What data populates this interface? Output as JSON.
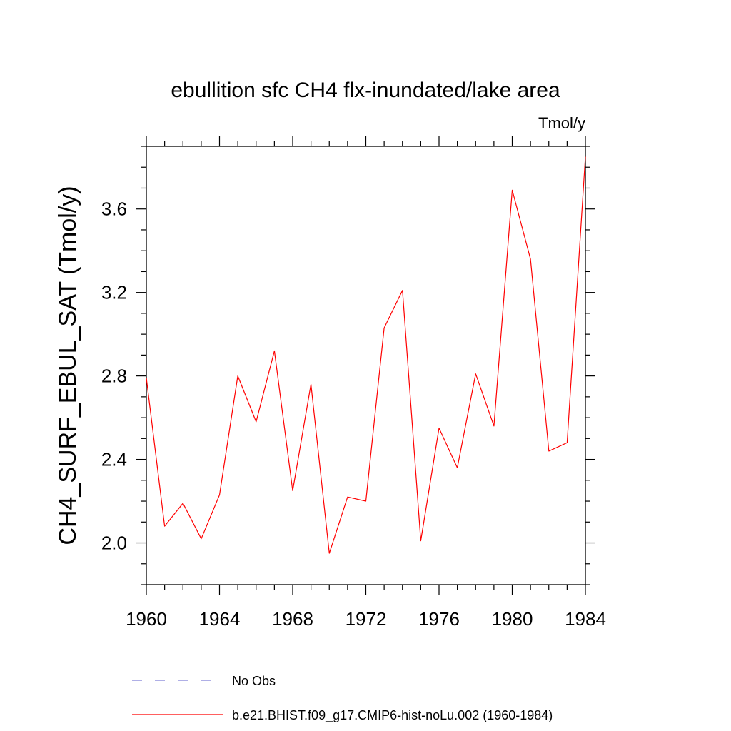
{
  "chart_data": {
    "type": "line",
    "title": "ebullition sfc CH4 flx-inundated/lake area",
    "units": "Tmol/y",
    "ylabel": "CH4_SURF_EBUL_SAT  (Tmol/y)",
    "xlabel": "",
    "xlim": [
      1960,
      1984
    ],
    "ylim": [
      1.8,
      3.9
    ],
    "x_ticks": [
      1960,
      1964,
      1968,
      1972,
      1976,
      1980,
      1984
    ],
    "y_ticks": [
      "2.0",
      "2.4",
      "2.8",
      "3.2",
      "3.6"
    ],
    "grid": false,
    "legend_position": "bottom",
    "series": [
      {
        "name": "b.e21.BHIST.f09_g17.CMIP6-hist-noLu.002 (1960-1984)",
        "color": "#ff0000",
        "style": "solid",
        "x": [
          1960,
          1961,
          1962,
          1963,
          1964,
          1965,
          1966,
          1967,
          1968,
          1969,
          1970,
          1971,
          1972,
          1973,
          1974,
          1975,
          1976,
          1977,
          1978,
          1979,
          1980,
          1981,
          1982,
          1983,
          1984
        ],
        "values": [
          2.79,
          2.08,
          2.19,
          2.02,
          2.23,
          2.8,
          2.58,
          2.92,
          2.25,
          2.76,
          1.95,
          2.22,
          2.2,
          3.03,
          3.21,
          2.01,
          2.55,
          2.36,
          2.81,
          2.56,
          3.69,
          3.36,
          2.44,
          2.48,
          3.85
        ]
      }
    ],
    "legend": [
      {
        "label": "No Obs",
        "color": "#7f7fd8",
        "style": "dashed"
      },
      {
        "label": "b.e21.BHIST.f09_g17.CMIP6-hist-noLu.002 (1960-1984)",
        "color": "#ff0000",
        "style": "solid"
      }
    ]
  }
}
